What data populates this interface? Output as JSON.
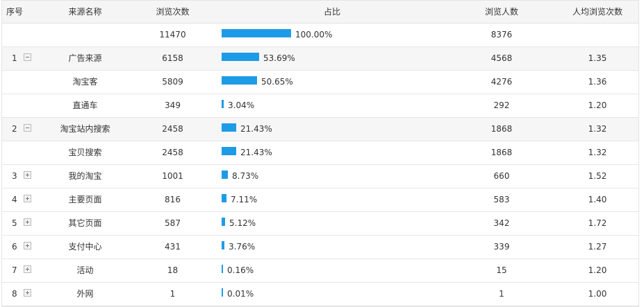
{
  "columns": {
    "idx": "序号",
    "source": "来源名称",
    "views": "浏览次数",
    "ratio": "占比",
    "users": "浏览人数",
    "avg": "人均浏览次数"
  },
  "colors": {
    "bar": "#1e9be6"
  },
  "rows": [
    {
      "idx": "",
      "toggle": "none",
      "source": "",
      "views": "11470",
      "ratio": 100.0,
      "ratio_label": "100.00%",
      "users": "8376",
      "avg": "",
      "shade": false
    },
    {
      "idx": "1",
      "toggle": "minus",
      "source": "广告来源",
      "views": "6158",
      "ratio": 53.69,
      "ratio_label": "53.69%",
      "users": "4568",
      "avg": "1.35",
      "shade": true
    },
    {
      "idx": "",
      "toggle": "none",
      "source": "淘宝客",
      "views": "5809",
      "ratio": 50.65,
      "ratio_label": "50.65%",
      "users": "4276",
      "avg": "1.36",
      "shade": false
    },
    {
      "idx": "",
      "toggle": "none",
      "source": "直通车",
      "views": "349",
      "ratio": 3.04,
      "ratio_label": "3.04%",
      "users": "292",
      "avg": "1.20",
      "shade": false
    },
    {
      "idx": "2",
      "toggle": "minus",
      "source": "淘宝站内搜索",
      "views": "2458",
      "ratio": 21.43,
      "ratio_label": "21.43%",
      "users": "1868",
      "avg": "1.32",
      "shade": true
    },
    {
      "idx": "",
      "toggle": "none",
      "source": "宝贝搜索",
      "views": "2458",
      "ratio": 21.43,
      "ratio_label": "21.43%",
      "users": "1868",
      "avg": "1.32",
      "shade": false
    },
    {
      "idx": "3",
      "toggle": "plus",
      "source": "我的淘宝",
      "views": "1001",
      "ratio": 8.73,
      "ratio_label": "8.73%",
      "users": "660",
      "avg": "1.52",
      "shade": false
    },
    {
      "idx": "4",
      "toggle": "plus",
      "source": "主要页面",
      "views": "816",
      "ratio": 7.11,
      "ratio_label": "7.11%",
      "users": "583",
      "avg": "1.40",
      "shade": false
    },
    {
      "idx": "5",
      "toggle": "plus",
      "source": "其它页面",
      "views": "587",
      "ratio": 5.12,
      "ratio_label": "5.12%",
      "users": "342",
      "avg": "1.72",
      "shade": false
    },
    {
      "idx": "6",
      "toggle": "plus",
      "source": "支付中心",
      "views": "431",
      "ratio": 3.76,
      "ratio_label": "3.76%",
      "users": "339",
      "avg": "1.27",
      "shade": false
    },
    {
      "idx": "7",
      "toggle": "plus",
      "source": "活动",
      "views": "18",
      "ratio": 0.16,
      "ratio_label": "0.16%",
      "users": "15",
      "avg": "1.20",
      "shade": false
    },
    {
      "idx": "8",
      "toggle": "plus",
      "source": "外网",
      "views": "1",
      "ratio": 0.01,
      "ratio_label": "0.01%",
      "users": "1",
      "avg": "1.00",
      "shade": false
    }
  ]
}
